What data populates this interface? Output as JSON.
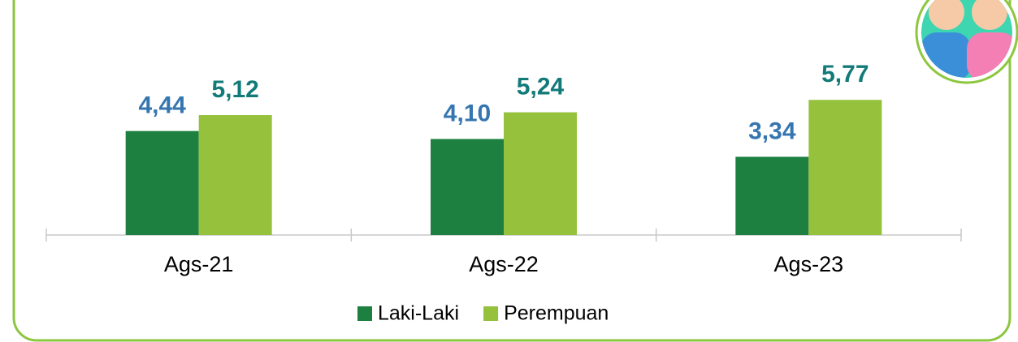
{
  "chart_data": {
    "type": "bar",
    "categories": [
      "Ags-21",
      "Ags-22",
      "Ags-23"
    ],
    "series": [
      {
        "name": "Laki-Laki",
        "color": "#1e8040",
        "label_color": "#3575b0",
        "values": [
          4.44,
          4.1,
          3.34
        ],
        "value_labels": [
          "4,44",
          "4,10",
          "3,34"
        ]
      },
      {
        "name": "Perempuan",
        "color": "#95c13d",
        "label_color": "#127a78",
        "values": [
          5.12,
          5.24,
          5.77
        ],
        "value_labels": [
          "5,12",
          "5,24",
          "5,77"
        ]
      }
    ]
  }
}
